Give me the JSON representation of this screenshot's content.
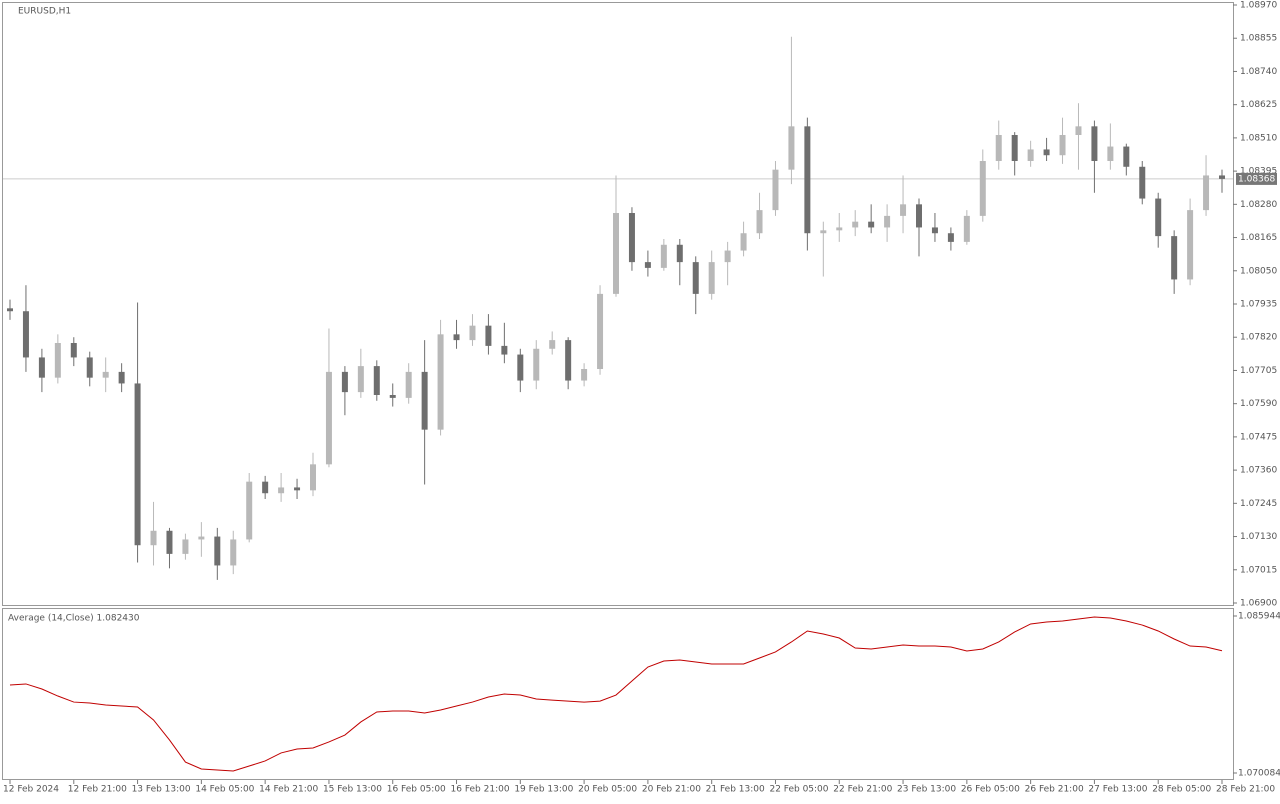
{
  "chart_data": [
    {
      "type": "candlestick",
      "title": "EURUSD,H1",
      "categories": [
        "12 Feb 2024",
        null,
        null,
        null,
        "12 Feb 21:00",
        null,
        null,
        null,
        "13 Feb 13:00",
        null,
        null,
        null,
        "14 Feb 05:00",
        null,
        null,
        null,
        "14 Feb 21:00",
        null,
        null,
        null,
        "15 Feb 13:00",
        null,
        null,
        null,
        "16 Feb 05:00",
        null,
        null,
        null,
        "16 Feb 21:00",
        null,
        null,
        null,
        "19 Feb 13:00",
        null,
        null,
        null,
        "20 Feb 05:00",
        null,
        null,
        null,
        "20 Feb 21:00",
        null,
        null,
        null,
        "21 Feb 13:00",
        null,
        null,
        null,
        "22 Feb 05:00",
        null,
        null,
        null,
        "22 Feb 21:00",
        null,
        null,
        null,
        "23 Feb 13:00",
        null,
        null,
        null,
        "26 Feb 05:00",
        null,
        null,
        null,
        "26 Feb 21:00",
        null,
        null,
        null,
        "27 Feb 13:00",
        null,
        null,
        null,
        "28 Feb 05:00",
        null,
        null,
        null,
        "28 Feb 21:00"
      ],
      "open": [
        1.0792,
        1.0791,
        1.0775,
        1.0768,
        1.078,
        1.0775,
        1.0768,
        1.077,
        1.0766,
        1.071,
        1.0715,
        1.0707,
        1.0712,
        1.0713,
        1.0703,
        1.0712,
        1.0732,
        1.0728,
        1.073,
        1.0729,
        1.0738,
        1.077,
        1.0763,
        1.0772,
        1.0762,
        1.0761,
        1.077,
        1.075,
        1.0783,
        1.0781,
        1.0786,
        1.0779,
        1.0776,
        1.0767,
        1.0778,
        1.0781,
        1.0767,
        1.0771,
        1.0797,
        1.0825,
        1.0808,
        1.0806,
        1.0814,
        1.0808,
        1.0797,
        1.0808,
        1.0812,
        1.0818,
        1.0826,
        1.084,
        1.0855,
        1.0818,
        1.0819,
        1.082,
        1.0822,
        1.082,
        1.0824,
        1.0828,
        1.082,
        1.0818,
        1.0815,
        1.0824,
        1.0843,
        1.0852,
        1.0843,
        1.0847,
        1.0845,
        1.0852,
        1.0855,
        1.0843,
        1.0848,
        1.0841,
        1.083,
        1.0817,
        1.0802,
        1.0826,
        1.0838
      ],
      "high": [
        1.0795,
        1.08,
        1.0778,
        1.0783,
        1.0782,
        1.0777,
        1.0775,
        1.0773,
        1.0794,
        1.0725,
        1.0716,
        1.0714,
        1.0718,
        1.0716,
        1.0715,
        1.0735,
        1.0734,
        1.0735,
        1.0733,
        1.0742,
        1.0785,
        1.0772,
        1.0778,
        1.0774,
        1.0766,
        1.0773,
        1.0781,
        1.0788,
        1.0788,
        1.079,
        1.079,
        1.0787,
        1.0778,
        1.0781,
        1.0784,
        1.0782,
        1.0773,
        1.08,
        1.0838,
        1.0827,
        1.0812,
        1.0816,
        1.0816,
        1.081,
        1.0812,
        1.0815,
        1.0822,
        1.0832,
        1.0843,
        1.0886,
        1.0858,
        1.0822,
        1.0825,
        1.0826,
        1.0828,
        1.0828,
        1.0838,
        1.083,
        1.0825,
        1.082,
        1.0826,
        1.0847,
        1.0857,
        1.0853,
        1.085,
        1.0851,
        1.0858,
        1.0863,
        1.0857,
        1.0856,
        1.0849,
        1.0843,
        1.0832,
        1.0819,
        1.083,
        1.0845,
        1.084
      ],
      "low": [
        1.0788,
        1.077,
        1.0763,
        1.0766,
        1.0772,
        1.0765,
        1.0763,
        1.0763,
        1.0704,
        1.0703,
        1.0702,
        1.0705,
        1.0706,
        1.0698,
        1.07,
        1.0711,
        1.0726,
        1.0725,
        1.0726,
        1.0727,
        1.0737,
        1.0755,
        1.0761,
        1.076,
        1.0758,
        1.0759,
        1.0731,
        1.0748,
        1.0778,
        1.0779,
        1.0776,
        1.0773,
        1.0763,
        1.0764,
        1.0776,
        1.0764,
        1.0765,
        1.0769,
        1.0796,
        1.0805,
        1.0803,
        1.0805,
        1.08,
        1.079,
        1.0795,
        1.08,
        1.081,
        1.0816,
        1.0824,
        1.0835,
        1.0812,
        1.0803,
        1.0815,
        1.0817,
        1.0818,
        1.0815,
        1.0818,
        1.081,
        1.0815,
        1.0812,
        1.0814,
        1.0822,
        1.084,
        1.0838,
        1.0841,
        1.0843,
        1.0842,
        1.084,
        1.0832,
        1.084,
        1.0838,
        1.0828,
        1.0813,
        1.0797,
        1.08,
        1.0824,
        1.0832
      ],
      "close": [
        1.0791,
        1.0775,
        1.0768,
        1.078,
        1.0775,
        1.0768,
        1.077,
        1.0766,
        1.071,
        1.0715,
        1.0707,
        1.0712,
        1.0713,
        1.0703,
        1.0712,
        1.0732,
        1.0728,
        1.073,
        1.0729,
        1.0738,
        1.077,
        1.0763,
        1.0772,
        1.0762,
        1.0761,
        1.077,
        1.075,
        1.0783,
        1.0781,
        1.0786,
        1.0779,
        1.0776,
        1.0767,
        1.0778,
        1.0781,
        1.0767,
        1.0771,
        1.0797,
        1.0825,
        1.0808,
        1.0806,
        1.0814,
        1.0808,
        1.0797,
        1.0808,
        1.0812,
        1.0818,
        1.0826,
        1.084,
        1.0855,
        1.0818,
        1.0819,
        1.082,
        1.0822,
        1.082,
        1.0824,
        1.0828,
        1.082,
        1.0818,
        1.0815,
        1.0824,
        1.0843,
        1.0852,
        1.0843,
        1.0847,
        1.0845,
        1.0852,
        1.0855,
        1.0843,
        1.0848,
        1.0841,
        1.083,
        1.0817,
        1.0802,
        1.0826,
        1.0838,
        1.08368
      ],
      "up_color": "#b8b8b8",
      "down_color": "#6e6e6e",
      "ylim": [
        1.069,
        1.0897
      ],
      "yticks": [
        {
          "value": 1.069,
          "label": "1.06900"
        },
        {
          "value": 1.07015,
          "label": "1.07015"
        },
        {
          "value": 1.0713,
          "label": "1.07130"
        },
        {
          "value": 1.07245,
          "label": "1.07245"
        },
        {
          "value": 1.0736,
          "label": "1.07360"
        },
        {
          "value": 1.07475,
          "label": "1.07475"
        },
        {
          "value": 1.0759,
          "label": "1.07590"
        },
        {
          "value": 1.07705,
          "label": "1.07705"
        },
        {
          "value": 1.0782,
          "label": "1.07820"
        },
        {
          "value": 1.07935,
          "label": "1.07935"
        },
        {
          "value": 1.0805,
          "label": "1.08050"
        },
        {
          "value": 1.08165,
          "label": "1.08165"
        },
        {
          "value": 1.0828,
          "label": "1.08280"
        },
        {
          "value": 1.08395,
          "label": "1.08395"
        },
        {
          "value": 1.0851,
          "label": "1.08510"
        },
        {
          "value": 1.08625,
          "label": "1.08625"
        },
        {
          "value": 1.0874,
          "label": "1.08740"
        },
        {
          "value": 1.08855,
          "label": "1.08855"
        },
        {
          "value": 1.0897,
          "label": "1.08970"
        }
      ],
      "current_price": 1.08368
    },
    {
      "type": "line",
      "title": "Average (14,Close) 1.082430",
      "color": "#c00000",
      "values": [
        1.07897,
        1.07908,
        1.07857,
        1.07786,
        1.07725,
        1.07715,
        1.07695,
        1.07685,
        1.07675,
        1.07544,
        1.07342,
        1.07119,
        1.07049,
        1.07039,
        1.07029,
        1.07079,
        1.0713,
        1.07211,
        1.07251,
        1.07261,
        1.07322,
        1.07392,
        1.07524,
        1.07625,
        1.07635,
        1.07635,
        1.07615,
        1.07645,
        1.07685,
        1.07725,
        1.07776,
        1.07806,
        1.07796,
        1.07756,
        1.07745,
        1.07735,
        1.07725,
        1.07735,
        1.07796,
        1.07938,
        1.08079,
        1.0814,
        1.0815,
        1.0813,
        1.0811,
        1.0811,
        1.0811,
        1.0817,
        1.08231,
        1.08332,
        1.08443,
        1.08413,
        1.08372,
        1.08271,
        1.08261,
        1.08281,
        1.08301,
        1.08291,
        1.08291,
        1.08281,
        1.08241,
        1.08261,
        1.08332,
        1.08433,
        1.08514,
        1.08534,
        1.08544,
        1.08564,
        1.08584,
        1.08574,
        1.08544,
        1.08503,
        1.08443,
        1.08362,
        1.08291,
        1.08281,
        1.08243
      ],
      "ylim": [
        1.070084,
        1.085944
      ],
      "yticks": [
        1.085944,
        1.070084
      ]
    }
  ]
}
